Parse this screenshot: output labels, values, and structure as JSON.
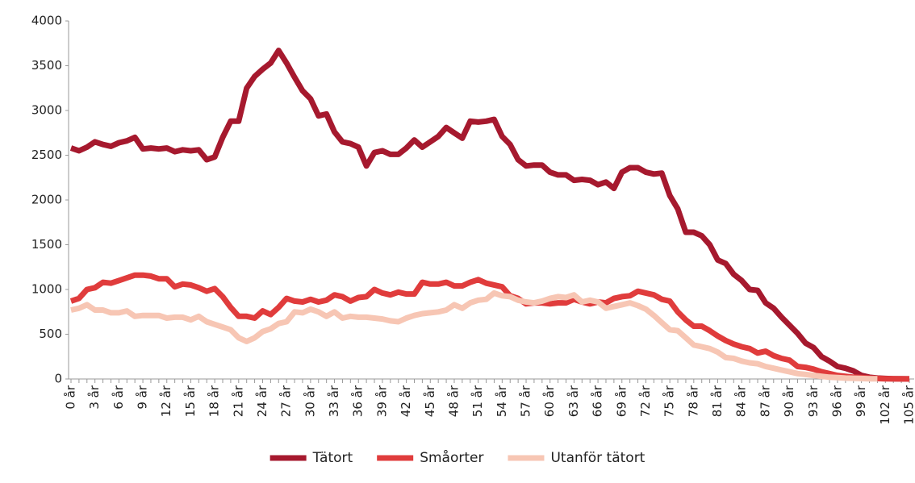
{
  "chart_data": {
    "type": "line",
    "categories": [
      "0 år",
      null,
      null,
      "3 år",
      null,
      null,
      "6 år",
      null,
      null,
      "9 år",
      null,
      null,
      "12 år",
      null,
      null,
      "15 år",
      null,
      null,
      "18 år",
      null,
      null,
      "21 år",
      null,
      null,
      "24 år",
      null,
      null,
      "27 år",
      null,
      null,
      "30 år",
      null,
      null,
      "33 år",
      null,
      null,
      "36 år",
      null,
      null,
      "39 år",
      null,
      null,
      "42 år",
      null,
      null,
      "45 år",
      null,
      null,
      "48 år",
      null,
      null,
      "51 år",
      null,
      null,
      "54 år",
      null,
      null,
      "57 år",
      null,
      null,
      "60 år",
      null,
      null,
      "63 år",
      null,
      null,
      "66 år",
      null,
      null,
      "69 år",
      null,
      null,
      "72 år",
      null,
      null,
      "75 år",
      null,
      null,
      "78 år",
      null,
      null,
      "81 år",
      null,
      null,
      "84 år",
      null,
      null,
      "87 år",
      null,
      null,
      "90 år",
      null,
      null,
      "93 år",
      null,
      null,
      "96 år",
      null,
      null,
      "99 år",
      null,
      null,
      "102 år",
      null,
      null,
      "105 år"
    ],
    "series": [
      {
        "name": "Tätort",
        "color": "#a6192e",
        "values": [
          2580,
          2550,
          2590,
          2650,
          2620,
          2600,
          2640,
          2660,
          2700,
          2570,
          2580,
          2570,
          2580,
          2540,
          2560,
          2550,
          2560,
          2450,
          2480,
          2700,
          2880,
          2880,
          3250,
          3380,
          3460,
          3530,
          3670,
          3530,
          3370,
          3220,
          3130,
          2940,
          2960,
          2760,
          2650,
          2630,
          2590,
          2380,
          2530,
          2550,
          2510,
          2510,
          2580,
          2670,
          2590,
          2650,
          2710,
          2810,
          2750,
          2690,
          2880,
          2870,
          2880,
          2900,
          2710,
          2620,
          2450,
          2380,
          2390,
          2390,
          2310,
          2280,
          2280,
          2220,
          2230,
          2220,
          2170,
          2200,
          2130,
          2310,
          2360,
          2360,
          2310,
          2290,
          2300,
          2050,
          1900,
          1640,
          1640,
          1600,
          1500,
          1330,
          1290,
          1170,
          1100,
          1000,
          990,
          850,
          790,
          690,
          600,
          510,
          400,
          350,
          250,
          200,
          140,
          120,
          90,
          40,
          20,
          10,
          5,
          3,
          2,
          1
        ]
      },
      {
        "name": "Småorter",
        "color": "#e03c3c",
        "values": [
          870,
          900,
          1000,
          1020,
          1080,
          1070,
          1100,
          1130,
          1160,
          1160,
          1150,
          1120,
          1120,
          1030,
          1060,
          1050,
          1020,
          980,
          1010,
          920,
          800,
          700,
          700,
          680,
          760,
          720,
          800,
          900,
          870,
          860,
          890,
          860,
          880,
          940,
          920,
          870,
          910,
          920,
          1000,
          960,
          940,
          970,
          950,
          950,
          1080,
          1060,
          1060,
          1080,
          1040,
          1040,
          1080,
          1110,
          1070,
          1050,
          1030,
          930,
          900,
          840,
          850,
          850,
          840,
          850,
          850,
          890,
          860,
          840,
          860,
          850,
          900,
          920,
          930,
          980,
          960,
          940,
          890,
          870,
          750,
          660,
          590,
          590,
          540,
          480,
          430,
          390,
          360,
          340,
          290,
          310,
          260,
          230,
          210,
          140,
          130,
          110,
          80,
          60,
          40,
          30,
          20,
          15,
          10,
          5,
          3,
          2,
          1,
          1
        ]
      },
      {
        "name": "Utanför tätort",
        "color": "#f7c6b4",
        "values": [
          770,
          790,
          830,
          770,
          770,
          740,
          740,
          760,
          700,
          710,
          710,
          710,
          680,
          690,
          690,
          660,
          700,
          640,
          610,
          580,
          550,
          460,
          420,
          460,
          530,
          560,
          620,
          640,
          750,
          740,
          780,
          750,
          700,
          750,
          680,
          700,
          690,
          690,
          680,
          670,
          650,
          640,
          680,
          710,
          730,
          740,
          750,
          770,
          830,
          790,
          850,
          880,
          890,
          960,
          930,
          920,
          880,
          860,
          850,
          870,
          900,
          920,
          910,
          940,
          860,
          880,
          860,
          790,
          810,
          830,
          850,
          820,
          780,
          710,
          630,
          550,
          540,
          460,
          380,
          360,
          340,
          300,
          240,
          230,
          200,
          180,
          170,
          140,
          120,
          100,
          80,
          60,
          50,
          40,
          30,
          20,
          15,
          10,
          8,
          5,
          3,
          2,
          null,
          null,
          null,
          null
        ]
      }
    ],
    "ylim": [
      0,
      4000
    ],
    "yticks": [
      0,
      500,
      1000,
      1500,
      2000,
      2500,
      3000,
      3500,
      4000
    ],
    "legend": "bottom"
  }
}
